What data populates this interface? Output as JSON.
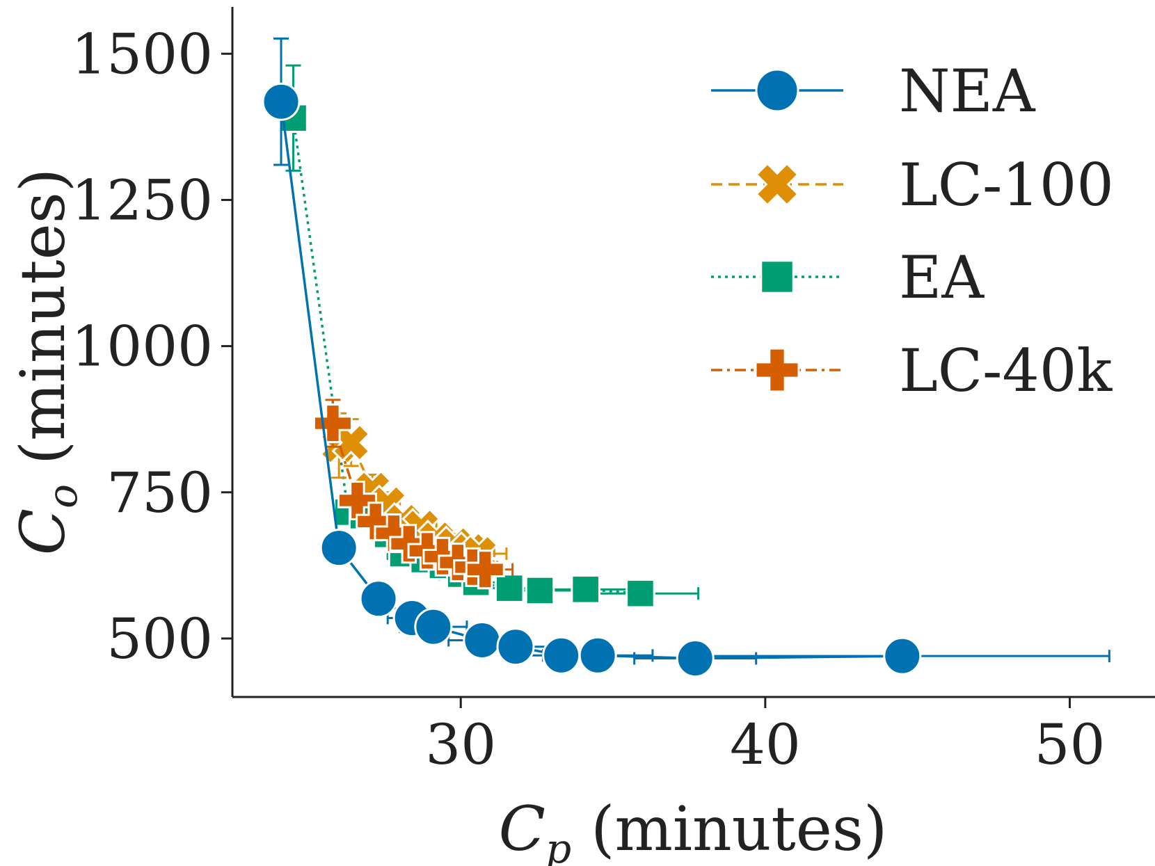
{
  "chart_data": {
    "type": "line",
    "title": "",
    "xlabel": {
      "main": "C",
      "sub": "p",
      "rest": " (minutes)"
    },
    "ylabel": {
      "main": "C",
      "sub": "o",
      "rest": " (minutes)"
    },
    "xlim": [
      22.5,
      52.8
    ],
    "ylim": [
      400,
      1580
    ],
    "xticks": [
      30,
      40,
      50
    ],
    "yticks": [
      500,
      750,
      1000,
      1250,
      1500
    ],
    "legend_position": "top-right",
    "series": [
      {
        "name": "NEA",
        "color": "#0072b2",
        "marker": "circle",
        "linestyle": "solid",
        "x": [
          24.1,
          26.0,
          27.3,
          28.4,
          29.1,
          30.7,
          31.8,
          33.3,
          34.5,
          37.7,
          44.5
        ],
        "y": [
          1418,
          655,
          568,
          535,
          520,
          497,
          486,
          471,
          471,
          466,
          470
        ],
        "xerr": [
          0.0,
          0.0,
          0.4,
          0.8,
          1.1,
          1.1,
          1.4,
          1.5,
          1.8,
          2.0,
          6.8
        ],
        "yerr": [
          108,
          20,
          12,
          9,
          8,
          7,
          7,
          6,
          6,
          6,
          6
        ]
      },
      {
        "name": "LC-100",
        "color": "#de8f05",
        "marker": "x",
        "linestyle": "dashed",
        "x": [
          26.0,
          26.4,
          27.1,
          27.6,
          28.1,
          28.7,
          29.2,
          29.8,
          30.3,
          30.6
        ],
        "y": [
          830,
          835,
          755,
          730,
          700,
          690,
          670,
          660,
          650,
          645
        ],
        "xerr": [
          0.3,
          0.3,
          0.3,
          0.4,
          0.5,
          0.5,
          0.6,
          0.7,
          0.8,
          0.9
        ],
        "yerr": [
          55,
          40,
          25,
          20,
          18,
          16,
          15,
          14,
          13,
          12
        ]
      },
      {
        "name": "EA",
        "color": "#029e73",
        "marker": "square",
        "linestyle": "dotted",
        "x": [
          24.5,
          26.3,
          26.8,
          27.6,
          28.1,
          28.8,
          29.4,
          30.0,
          30.5,
          31.6,
          32.6,
          34.1,
          35.9
        ],
        "y": [
          1390,
          716,
          710,
          678,
          645,
          635,
          625,
          610,
          596,
          586,
          582,
          584,
          577
        ],
        "xerr": [
          0.0,
          0.3,
          0.3,
          0.4,
          0.5,
          0.5,
          0.6,
          0.7,
          0.8,
          0.9,
          1.1,
          1.5,
          1.9
        ],
        "yerr": [
          90,
          20,
          18,
          15,
          14,
          13,
          12,
          11,
          10,
          10,
          10,
          10,
          10
        ]
      },
      {
        "name": "LC-40k",
        "color": "#d55e00",
        "marker": "plus",
        "linestyle": "dashdot",
        "x": [
          25.8,
          26.6,
          27.2,
          27.8,
          28.3,
          28.9,
          29.4,
          29.9,
          30.4,
          30.8
        ],
        "y": [
          868,
          736,
          700,
          680,
          662,
          650,
          640,
          630,
          622,
          618
        ],
        "xerr": [
          0.3,
          0.3,
          0.4,
          0.4,
          0.5,
          0.5,
          0.6,
          0.7,
          0.8,
          0.9
        ],
        "yerr": [
          40,
          25,
          20,
          18,
          16,
          15,
          14,
          13,
          12,
          12
        ]
      }
    ]
  }
}
